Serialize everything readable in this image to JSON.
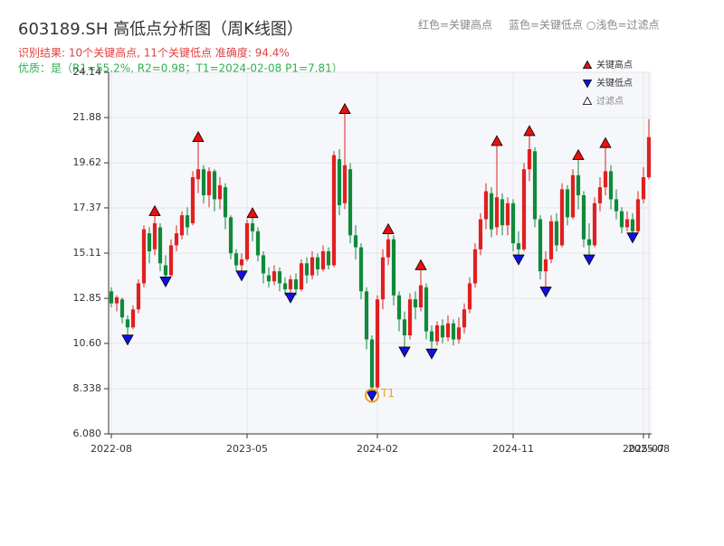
{
  "chart_data": {
    "type": "candlestick",
    "title": "603189.SH 高低点分析图（周K线图）",
    "header_legend": [
      "红色=关键高点",
      "蓝色=关键低点",
      "○浅色=过滤点"
    ],
    "subtitle": "识别结果: 10个关键高点, 11个关键低点  准确度: 94.4%",
    "note": "优质：是（R1=55.2%, R2=0.98；T1=2024-02-08 P1=7.81）",
    "annotation": "T1",
    "categories": [
      "2022-08",
      null,
      null,
      null,
      null,
      null,
      null,
      null,
      null,
      null,
      null,
      null,
      null,
      null,
      null,
      null,
      null,
      null,
      null,
      null,
      null,
      null,
      null,
      null,
      null,
      "2023-05",
      null,
      null,
      null,
      null,
      null,
      null,
      null,
      null,
      null,
      null,
      null,
      null,
      null,
      null,
      null,
      null,
      null,
      null,
      null,
      null,
      null,
      null,
      null,
      "2024-02",
      null,
      null,
      null,
      null,
      null,
      null,
      null,
      null,
      null,
      null,
      null,
      null,
      null,
      null,
      null,
      null,
      null,
      null,
      null,
      null,
      null,
      null,
      null,
      null,
      "2024-11",
      null,
      null,
      null,
      null,
      null,
      null,
      null,
      null,
      null,
      null,
      null,
      null,
      null,
      null,
      null,
      null,
      null,
      null,
      null,
      null,
      null,
      null,
      null,
      "2025-07",
      "2025-08"
    ],
    "open": [
      13.2,
      12.6,
      12.8,
      11.8,
      11.4,
      12.3,
      13.6,
      16.1,
      15.3,
      16.4,
      14.5,
      14.0,
      15.5,
      16.0,
      17.0,
      16.6,
      18.8,
      19.3,
      18.0,
      19.2,
      17.8,
      18.4,
      16.9,
      15.1,
      14.5,
      14.8,
      16.6,
      16.2,
      15.0,
      14.0,
      13.7,
      14.2,
      13.6,
      13.3,
      13.8,
      13.3,
      14.6,
      14.0,
      14.9,
      14.3,
      15.2,
      14.5,
      19.8,
      17.6,
      19.3,
      16.0,
      15.4,
      13.2,
      10.8,
      8.4,
      12.8,
      14.9,
      15.8,
      13.0,
      11.8,
      11.0,
      12.8,
      12.4,
      13.4,
      11.2,
      10.7,
      11.5,
      10.9,
      11.6,
      10.8,
      11.4,
      12.3,
      13.6,
      15.3,
      16.8,
      18.1,
      16.4,
      17.8,
      16.5,
      17.6,
      15.6,
      15.3,
      19.3,
      20.2,
      16.8,
      14.2,
      14.8,
      16.7,
      15.5,
      18.3,
      16.9,
      19.0,
      18.0,
      15.8,
      15.5,
      17.6,
      18.4,
      19.2,
      17.8,
      17.2,
      16.4,
      16.8,
      16.2,
      17.8,
      18.9
    ],
    "high": [
      13.4,
      13.0,
      12.9,
      12.0,
      12.5,
      13.8,
      16.5,
      16.4,
      17.2,
      16.6,
      15.0,
      15.8,
      16.5,
      17.2,
      17.4,
      19.2,
      20.9,
      19.5,
      19.4,
      19.3,
      18.9,
      18.6,
      17.0,
      15.3,
      15.1,
      16.8,
      17.1,
      16.4,
      15.2,
      14.4,
      14.5,
      14.4,
      13.9,
      14.0,
      14.1,
      14.8,
      14.9,
      15.2,
      15.1,
      15.5,
      15.4,
      20.2,
      20.3,
      22.3,
      19.6,
      16.5,
      15.6,
      13.4,
      11.0,
      13.0,
      15.3,
      16.3,
      16.0,
      13.2,
      12.2,
      13.1,
      13.2,
      14.5,
      13.6,
      11.5,
      11.7,
      11.8,
      12.0,
      11.8,
      11.9,
      12.6,
      13.9,
      15.6,
      17.1,
      18.6,
      18.4,
      20.7,
      18.1,
      17.9,
      17.8,
      16.2,
      19.6,
      21.2,
      20.4,
      17.0,
      15.2,
      17.0,
      17.1,
      18.6,
      18.5,
      19.3,
      20.0,
      18.2,
      16.6,
      17.9,
      18.9,
      20.6,
      19.5,
      18.3,
      17.4,
      17.2,
      17.1,
      18.2,
      19.4,
      21.8
    ],
    "low": [
      12.4,
      12.2,
      11.6,
      10.8,
      11.3,
      12.1,
      13.4,
      14.6,
      15.0,
      14.2,
      13.7,
      13.9,
      15.2,
      15.8,
      16.0,
      16.5,
      18.1,
      17.6,
      17.4,
      17.2,
      17.3,
      16.3,
      14.8,
      14.2,
      14.0,
      14.7,
      15.7,
      14.7,
      13.6,
      13.4,
      13.5,
      13.2,
      13.0,
      12.9,
      13.0,
      13.2,
      13.6,
      13.8,
      14.0,
      14.2,
      14.3,
      14.4,
      17.0,
      17.3,
      15.6,
      14.8,
      12.8,
      10.3,
      8.0,
      8.3,
      12.3,
      14.5,
      12.5,
      11.2,
      10.2,
      10.8,
      11.8,
      12.2,
      10.8,
      10.1,
      10.5,
      10.6,
      10.7,
      10.5,
      10.6,
      11.1,
      12.1,
      13.4,
      15.0,
      16.3,
      15.9,
      16.0,
      16.0,
      16.0,
      15.2,
      14.8,
      15.2,
      18.7,
      16.4,
      13.8,
      13.2,
      14.6,
      15.2,
      15.4,
      16.5,
      16.8,
      17.3,
      15.4,
      14.8,
      15.4,
      17.2,
      18.0,
      17.3,
      16.8,
      16.1,
      16.2,
      15.9,
      16.1,
      17.6,
      18.8
    ],
    "close": [
      12.6,
      12.9,
      11.9,
      11.4,
      12.3,
      13.6,
      16.3,
      15.2,
      16.6,
      14.6,
      14.0,
      15.5,
      16.1,
      17.0,
      16.4,
      18.9,
      19.3,
      18.0,
      19.2,
      17.8,
      18.5,
      16.9,
      15.1,
      14.5,
      14.8,
      16.6,
      16.2,
      15.0,
      14.1,
      13.7,
      14.2,
      13.6,
      13.3,
      13.8,
      13.3,
      14.6,
      14.0,
      14.9,
      14.3,
      15.2,
      14.5,
      20.0,
      17.5,
      19.5,
      16.0,
      15.4,
      13.2,
      10.8,
      8.4,
      12.8,
      14.9,
      15.8,
      13.0,
      11.8,
      11.0,
      12.8,
      12.4,
      13.5,
      11.2,
      10.7,
      11.5,
      10.9,
      11.6,
      10.8,
      11.4,
      12.3,
      13.6,
      15.3,
      16.8,
      18.2,
      16.3,
      17.9,
      16.5,
      17.6,
      15.6,
      15.3,
      19.3,
      20.3,
      16.8,
      14.2,
      14.8,
      16.7,
      15.5,
      18.3,
      16.9,
      19.0,
      18.0,
      15.8,
      15.5,
      17.6,
      18.4,
      19.2,
      17.8,
      17.2,
      16.4,
      16.8,
      16.2,
      17.8,
      18.9,
      20.9
    ],
    "up_color": "#e02020",
    "down_color": "#108a3a",
    "markers": [
      {
        "name": "关键高点",
        "color": "#e81010",
        "shape": "up",
        "values": [
          null,
          null,
          null,
          null,
          null,
          null,
          null,
          null,
          17.2,
          null,
          null,
          null,
          null,
          null,
          null,
          null,
          20.9,
          null,
          null,
          null,
          null,
          null,
          null,
          null,
          null,
          null,
          17.1,
          null,
          null,
          null,
          null,
          null,
          null,
          null,
          null,
          null,
          null,
          null,
          null,
          null,
          null,
          null,
          null,
          22.3,
          null,
          null,
          null,
          null,
          null,
          null,
          null,
          16.3,
          null,
          null,
          null,
          null,
          null,
          14.5,
          null,
          null,
          null,
          null,
          null,
          null,
          null,
          null,
          null,
          null,
          null,
          null,
          null,
          20.7,
          null,
          null,
          null,
          null,
          null,
          21.2,
          null,
          null,
          null,
          null,
          null,
          null,
          null,
          null,
          20.0,
          null,
          null,
          null,
          null,
          20.6,
          null,
          null,
          null,
          null,
          null,
          null,
          null,
          null
        ]
      },
      {
        "name": "关键低点",
        "color": "#1010e0",
        "shape": "down",
        "values": [
          null,
          null,
          null,
          10.8,
          null,
          null,
          null,
          null,
          null,
          null,
          13.7,
          null,
          null,
          null,
          null,
          null,
          null,
          null,
          null,
          null,
          null,
          null,
          null,
          null,
          14.0,
          null,
          null,
          null,
          null,
          null,
          null,
          null,
          null,
          12.9,
          null,
          null,
          null,
          null,
          null,
          null,
          null,
          null,
          null,
          null,
          null,
          null,
          null,
          null,
          8.0,
          null,
          null,
          null,
          null,
          null,
          10.2,
          null,
          null,
          null,
          null,
          10.1,
          null,
          null,
          null,
          null,
          null,
          null,
          null,
          null,
          null,
          null,
          null,
          null,
          null,
          null,
          null,
          14.8,
          null,
          null,
          null,
          null,
          13.2,
          null,
          null,
          null,
          null,
          null,
          null,
          null,
          14.8,
          null,
          null,
          null,
          null,
          null,
          null,
          null,
          15.9,
          null,
          null,
          null
        ]
      },
      {
        "name": "过滤点",
        "color": "#ffffff",
        "shape": "up",
        "values": [
          null,
          null,
          null,
          null,
          null,
          null,
          null,
          null,
          null,
          null,
          null,
          null,
          null,
          null,
          null,
          null,
          null,
          null,
          null,
          null,
          null,
          null,
          null,
          null,
          null,
          null,
          null,
          null,
          null,
          null,
          null,
          null,
          null,
          null,
          null,
          null,
          null,
          null,
          null,
          null,
          null,
          null,
          null,
          null,
          null,
          null,
          null,
          null,
          null,
          null,
          null,
          null,
          null,
          null,
          null,
          null,
          null,
          null,
          null,
          null,
          null,
          null,
          null,
          null,
          null,
          null,
          null,
          null,
          null,
          null,
          null,
          null,
          null,
          null,
          null,
          null,
          null,
          null,
          null,
          null,
          null,
          null,
          null,
          null,
          null,
          null,
          null,
          null,
          null,
          null,
          null,
          null,
          null,
          null,
          null,
          null,
          null,
          null,
          null,
          null
        ]
      }
    ],
    "ylim": [
      6.08,
      24.14
    ],
    "yticks": [
      {
        "value": 6.08,
        "label": "6.080"
      },
      8.338,
      {
        "value": 10.6,
        "label": "10.60"
      },
      12.85,
      15.11,
      17.37,
      19.62,
      21.88,
      24.14
    ],
    "grid": true,
    "legend": "upper right"
  }
}
